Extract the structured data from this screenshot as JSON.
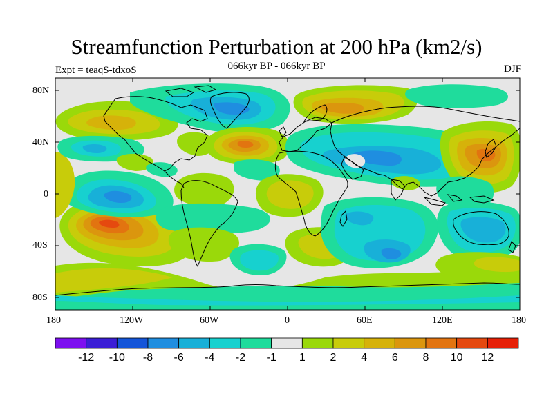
{
  "title": "Streamfunction Perturbation at 200 hPa (km2/s)",
  "subtitle": "066kyr BP - 066kyr BP",
  "experiment": "Expt = teaqS-tdxoS",
  "season": "DJF",
  "axes": {
    "y_ticks": [
      "80N",
      "40N",
      "0",
      "40S",
      "80S"
    ],
    "x_ticks": [
      "180",
      "120W",
      "60W",
      "0",
      "60E",
      "120E",
      "180"
    ]
  },
  "colorbar": {
    "colors": [
      "#7d0ff0",
      "#3b1ed6",
      "#1455d9",
      "#1f8ee0",
      "#18b0d8",
      "#17d1cf",
      "#1fdc9c",
      "#e6e6e6",
      "#9ad90a",
      "#c8cc0a",
      "#d6b20a",
      "#db960e",
      "#e27410",
      "#e5490f",
      "#e62007"
    ],
    "labels": [
      "-12",
      "-10",
      "-8",
      "-6",
      "-4",
      "-2",
      "-1",
      "1",
      "2",
      "4",
      "6",
      "8",
      "10",
      "12"
    ]
  },
  "colors": {
    "background": "#e6e6e6",
    "coast": "#000000"
  }
}
